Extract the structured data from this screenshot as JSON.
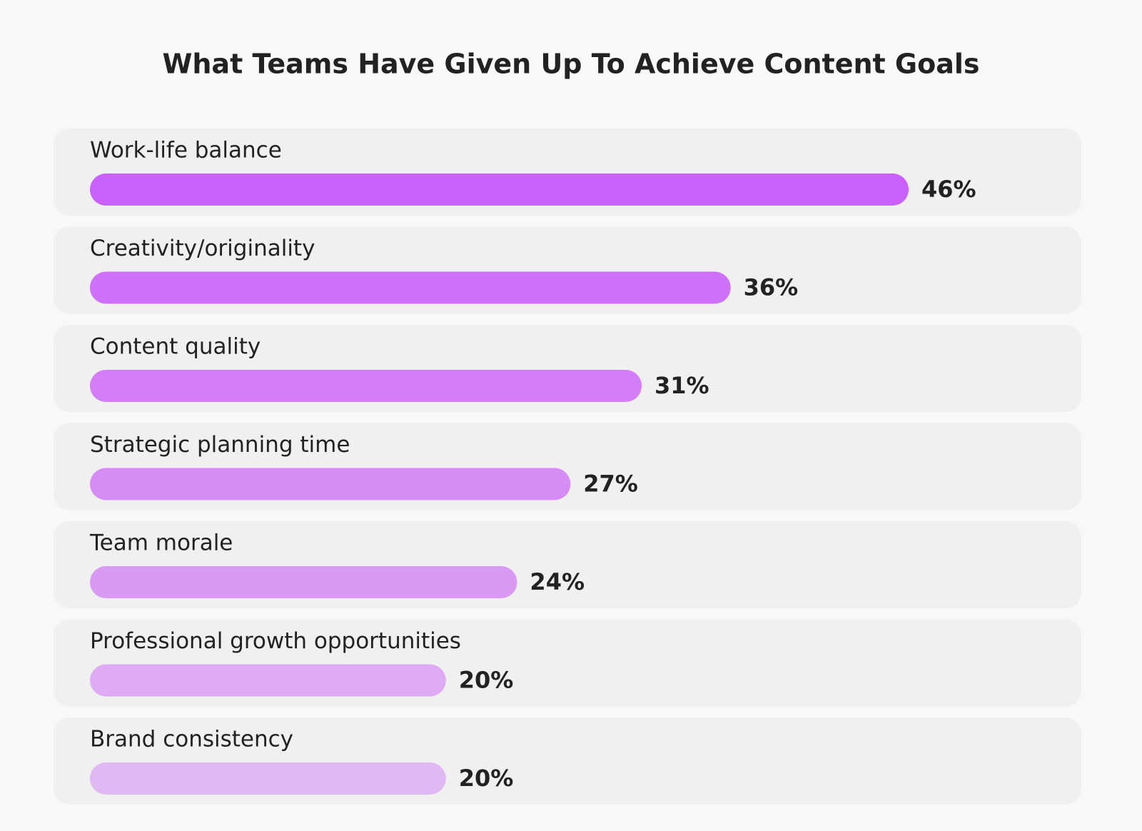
{
  "chart_data": {
    "type": "hbar",
    "title": "What Teams Have Given Up To Achieve Content Goals",
    "categories": [
      "Work-life balance",
      "Creativity/originality",
      "Content quality",
      "Strategic planning time",
      "Team morale",
      "Professional growth opportunities",
      "Brand consistency"
    ],
    "values": [
      46,
      36,
      31,
      27,
      24,
      20,
      20
    ],
    "value_labels": [
      "46%",
      "36%",
      "31%",
      "27%",
      "24%",
      "20%",
      "20%"
    ],
    "colors": [
      "#cb61fc",
      "#cf70f9",
      "#d37ef7",
      "#d68cf5",
      "#d99af3",
      "#ddaaf3",
      "#e0b9f3"
    ]
  }
}
